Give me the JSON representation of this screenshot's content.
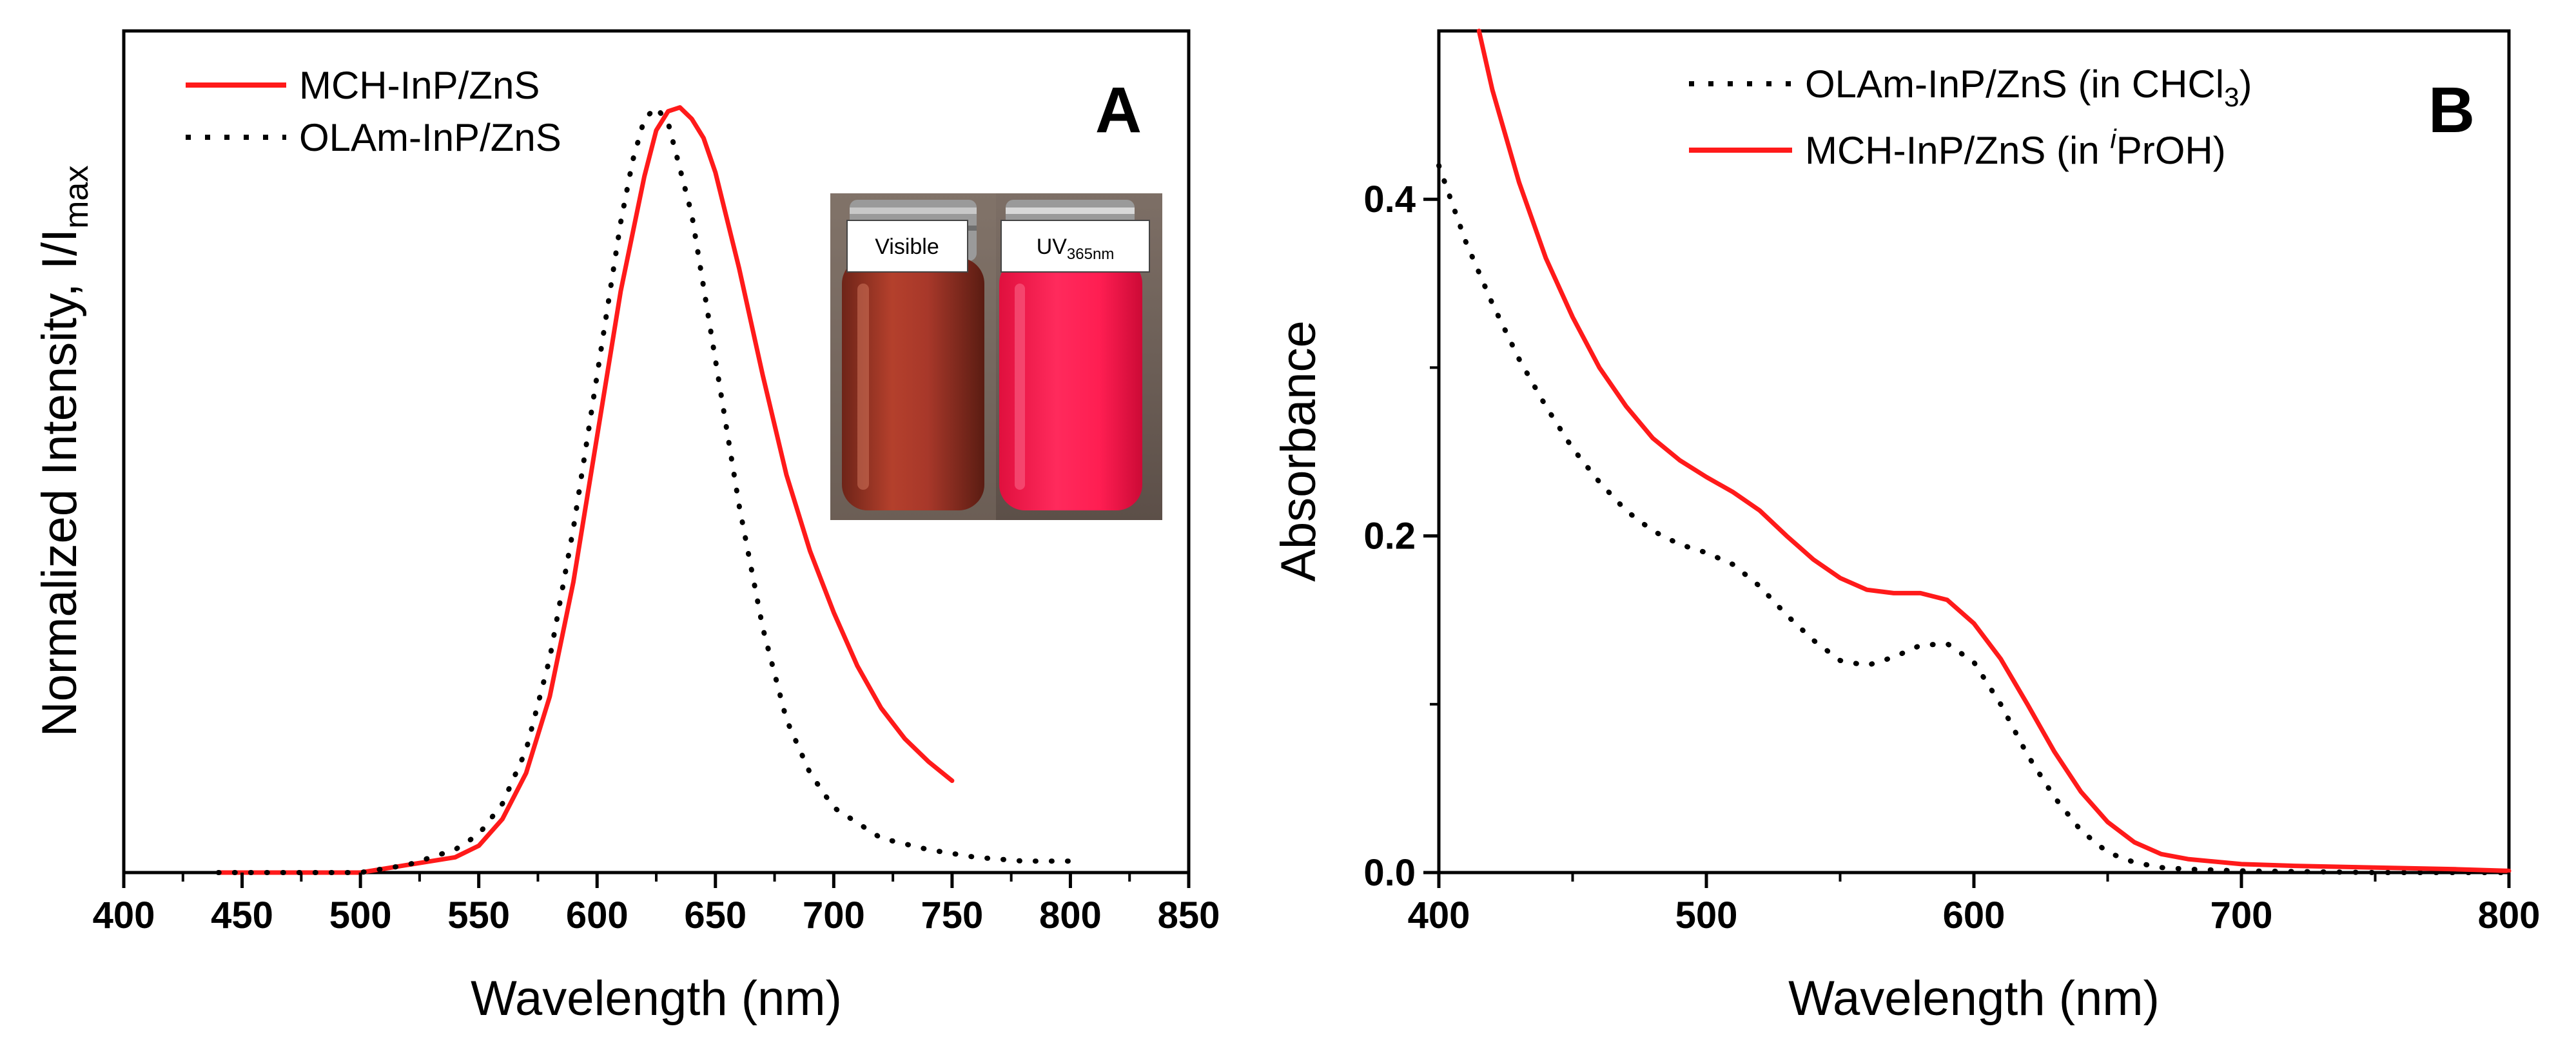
{
  "chart_data": [
    {
      "panel": "A",
      "type": "line",
      "xlabel": "Wavelength (nm)",
      "ylabel": "Normalized Intensity, I/I",
      "ylabel_sub": "max",
      "xlim": [
        400,
        850
      ],
      "ylim": [
        0,
        1.1
      ],
      "xticks": [
        400,
        450,
        500,
        550,
        600,
        650,
        700,
        750,
        800,
        850
      ],
      "yticks_shown": false,
      "legend_position": "top-left",
      "series": [
        {
          "name": "MCH-InP/ZnS",
          "color": "#ff1a1a",
          "style": "solid",
          "x": [
            440,
            460,
            480,
            500,
            520,
            540,
            550,
            560,
            570,
            580,
            590,
            600,
            610,
            620,
            625,
            630,
            635,
            640,
            645,
            650,
            660,
            670,
            680,
            690,
            700,
            710,
            720,
            730,
            740,
            750
          ],
          "y": [
            0.0,
            0.0,
            0.0,
            0.0,
            0.01,
            0.02,
            0.035,
            0.07,
            0.13,
            0.23,
            0.38,
            0.57,
            0.76,
            0.91,
            0.97,
            0.995,
            1.0,
            0.985,
            0.96,
            0.915,
            0.79,
            0.65,
            0.52,
            0.42,
            0.34,
            0.27,
            0.215,
            0.175,
            0.145,
            0.12
          ]
        },
        {
          "name": "OLAm-InP/ZnS",
          "color": "#000000",
          "style": "dotted",
          "x": [
            440,
            480,
            500,
            520,
            540,
            550,
            560,
            570,
            580,
            590,
            600,
            610,
            615,
            620,
            625,
            630,
            640,
            650,
            660,
            670,
            680,
            690,
            700,
            720,
            740,
            760,
            780,
            800
          ],
          "y": [
            0.0,
            0.0,
            0.0,
            0.01,
            0.03,
            0.05,
            0.09,
            0.16,
            0.28,
            0.45,
            0.65,
            0.85,
            0.93,
            0.985,
            1.0,
            0.98,
            0.86,
            0.67,
            0.48,
            0.32,
            0.2,
            0.13,
            0.085,
            0.045,
            0.03,
            0.02,
            0.015,
            0.015
          ]
        }
      ],
      "inset": {
        "labels": [
          "Visible",
          "UV"
        ],
        "uv_subscript": "365nm"
      }
    },
    {
      "panel": "B",
      "type": "line",
      "xlabel": "Wavelength (nm)",
      "ylabel": "Absorbance",
      "xlim": [
        400,
        800
      ],
      "ylim": [
        0,
        0.5
      ],
      "xticks": [
        400,
        500,
        600,
        700,
        800
      ],
      "yticks": [
        0.0,
        0.2,
        0.4
      ],
      "legend_position": "top-right",
      "series": [
        {
          "name": "OLAm-InP/ZnS (in CHCl",
          "name_sub": "3",
          "name_end": ")",
          "color": "#000000",
          "style": "dotted",
          "x": [
            400,
            410,
            420,
            430,
            440,
            450,
            460,
            470,
            480,
            490,
            500,
            510,
            520,
            530,
            540,
            550,
            560,
            570,
            580,
            590,
            600,
            610,
            620,
            630,
            640,
            650,
            660,
            670,
            680,
            700,
            750,
            800
          ],
          "y": [
            0.42,
            0.375,
            0.338,
            0.305,
            0.277,
            0.252,
            0.232,
            0.215,
            0.203,
            0.195,
            0.19,
            0.183,
            0.17,
            0.153,
            0.138,
            0.126,
            0.123,
            0.128,
            0.135,
            0.136,
            0.125,
            0.1,
            0.07,
            0.045,
            0.025,
            0.012,
            0.006,
            0.003,
            0.002,
            0.001,
            0.0,
            0.0
          ]
        },
        {
          "name": "MCH-InP/ZnS (in ",
          "name_sup": "i",
          "name_end": "PrOH)",
          "color": "#ff1a1a",
          "style": "solid",
          "x": [
            415,
            420,
            430,
            440,
            450,
            460,
            470,
            480,
            490,
            500,
            510,
            520,
            530,
            540,
            550,
            560,
            570,
            580,
            590,
            600,
            610,
            620,
            630,
            640,
            650,
            660,
            670,
            680,
            700,
            720,
            750,
            780,
            800
          ],
          "y": [
            0.5,
            0.465,
            0.41,
            0.365,
            0.33,
            0.3,
            0.277,
            0.258,
            0.245,
            0.235,
            0.226,
            0.215,
            0.2,
            0.186,
            0.175,
            0.168,
            0.166,
            0.166,
            0.162,
            0.148,
            0.127,
            0.1,
            0.072,
            0.048,
            0.03,
            0.018,
            0.011,
            0.008,
            0.005,
            0.004,
            0.003,
            0.002,
            0.001
          ]
        }
      ]
    }
  ]
}
